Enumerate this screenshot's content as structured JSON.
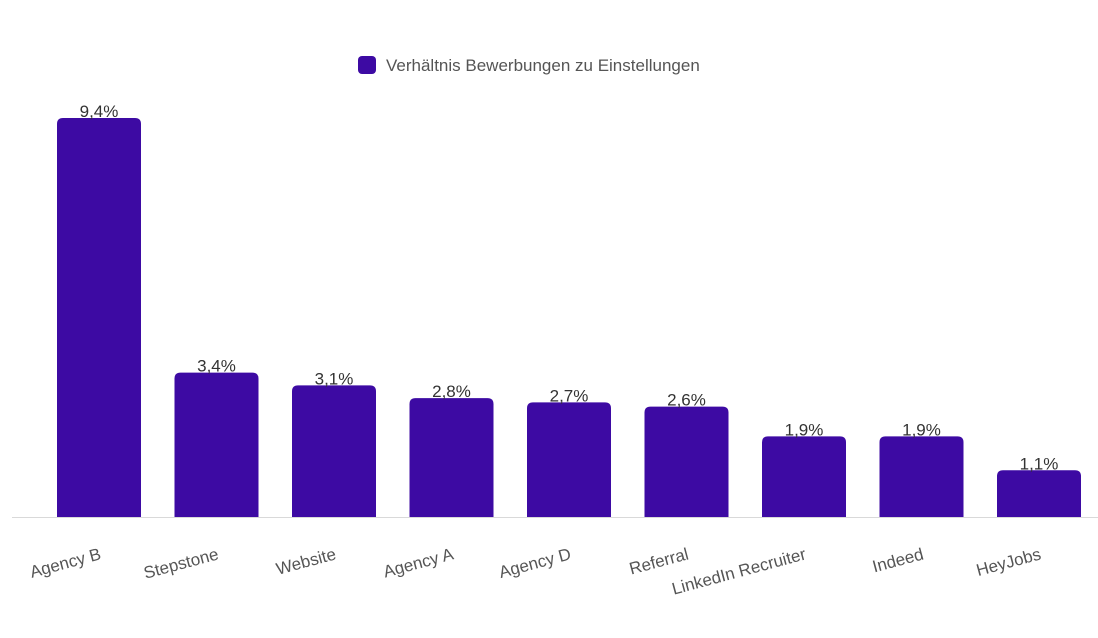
{
  "chart_data": {
    "type": "bar",
    "title": "",
    "xlabel": "",
    "ylabel": "",
    "categories": [
      "Agency B",
      "Stepstone",
      "Website",
      "Agency A",
      "Agency D",
      "Referral",
      "LinkedIn Recruiter",
      "Indeed",
      "HeyJobs"
    ],
    "series": [
      {
        "name": "Verhältnis Bewerbungen zu Einstellungen",
        "color": "#3d0aa3",
        "values": [
          9.4,
          3.4,
          3.1,
          2.8,
          2.7,
          2.6,
          1.9,
          1.9,
          1.1
        ],
        "labels": [
          "9,4%",
          "3,4%",
          "3,1%",
          "2,8%",
          "2,7%",
          "2,6%",
          "1,9%",
          "1,9%",
          "1,1%"
        ]
      }
    ],
    "ylim": [
      0,
      9.4
    ],
    "grid": false,
    "legend_position": "top-center"
  }
}
